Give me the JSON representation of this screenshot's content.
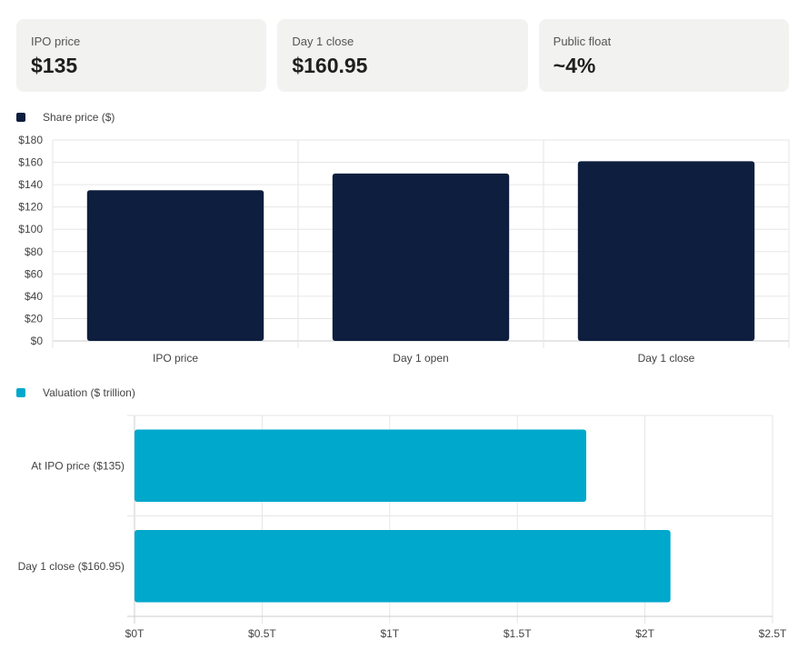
{
  "cards": [
    {
      "label": "IPO price",
      "value": "$135"
    },
    {
      "label": "Day 1 close",
      "value": "$160.95"
    },
    {
      "label": "Public float",
      "value": "~4%"
    }
  ],
  "chart_data": [
    {
      "type": "bar",
      "legend": "Share price ($)",
      "color": "#0e1e3e",
      "categories": [
        "IPO price",
        "Day 1 open",
        "Day 1 close"
      ],
      "series": [
        {
          "name": "Share price ($)",
          "values": [
            135,
            150,
            160.95
          ]
        }
      ],
      "ylim": [
        0,
        180
      ],
      "yticks": [
        0,
        20,
        40,
        60,
        80,
        100,
        120,
        140,
        160,
        180
      ],
      "ytick_labels": [
        "$0",
        "$20",
        "$40",
        "$60",
        "$80",
        "$100",
        "$120",
        "$140",
        "$160",
        "$180"
      ],
      "grid": true,
      "legend_position": "top-left"
    },
    {
      "type": "bar",
      "orientation": "horizontal",
      "legend": "Valuation ($ trillion)",
      "color": "#00a8cc",
      "categories": [
        "At IPO price ($135)",
        "Day 1 close ($160.95)"
      ],
      "series": [
        {
          "name": "Valuation ($ trillion)",
          "values": [
            1.77,
            2.1
          ]
        }
      ],
      "xlim": [
        0,
        2.5
      ],
      "xticks": [
        0,
        0.5,
        1,
        1.5,
        2,
        2.5
      ],
      "xtick_labels": [
        "$0T",
        "$0.5T",
        "$1T",
        "$1.5T",
        "$2T",
        "$2.5T"
      ],
      "grid": true,
      "legend_position": "top-left"
    }
  ]
}
